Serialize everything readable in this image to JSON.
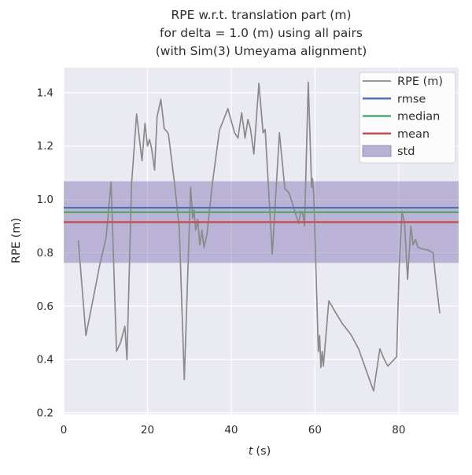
{
  "figure": {
    "background": "#ffffff",
    "plot_background": "#eaeaf2",
    "grid_color": "#ffffff",
    "text_color": "#2e2e2e"
  },
  "chart_data": {
    "type": "line",
    "title_lines": [
      "RPE w.r.t. translation part (m)",
      "for delta = 1.0 (m) using all pairs",
      "(with Sim(3) Umeyama alignment)"
    ],
    "xlabel_var": "t",
    "xlabel_unit": "(s)",
    "ylabel": "RPE (m)",
    "xlim": [
      0,
      94.3
    ],
    "ylim": [
      0.194,
      1.494
    ],
    "xticks": [
      0,
      20,
      40,
      60,
      80
    ],
    "yticks": [
      0.2,
      0.4,
      0.6,
      0.8,
      1.0,
      1.2,
      1.4
    ],
    "grid": true,
    "legend_position": "upper right",
    "legend_labels": [
      "RPE (m)",
      "rmse",
      "median",
      "mean",
      "std"
    ],
    "series": [
      {
        "name": "RPE (m)",
        "type": "line",
        "color": "#8a8a8a",
        "points": [
          [
            3.5,
            0.845
          ],
          [
            5.3,
            0.49
          ],
          [
            7.3,
            0.65
          ],
          [
            8.6,
            0.755
          ],
          [
            10.1,
            0.855
          ],
          [
            11.3,
            1.065
          ],
          [
            12.6,
            0.43
          ],
          [
            13.6,
            0.465
          ],
          [
            14.6,
            0.525
          ],
          [
            15.1,
            0.4
          ],
          [
            16.2,
            1.055
          ],
          [
            17.4,
            1.32
          ],
          [
            18.7,
            1.145
          ],
          [
            19.4,
            1.285
          ],
          [
            20.0,
            1.2
          ],
          [
            20.5,
            1.225
          ],
          [
            21.0,
            1.19
          ],
          [
            21.7,
            1.11
          ],
          [
            22.3,
            1.31
          ],
          [
            23.2,
            1.375
          ],
          [
            24.0,
            1.265
          ],
          [
            24.6,
            1.255
          ],
          [
            25.0,
            1.245
          ],
          [
            26.5,
            1.055
          ],
          [
            27.6,
            0.89
          ],
          [
            28.8,
            0.325
          ],
          [
            30.3,
            1.045
          ],
          [
            30.8,
            0.93
          ],
          [
            31.1,
            0.96
          ],
          [
            31.5,
            0.885
          ],
          [
            32.0,
            0.925
          ],
          [
            32.5,
            0.83
          ],
          [
            33.0,
            0.885
          ],
          [
            33.5,
            0.82
          ],
          [
            34.2,
            0.87
          ],
          [
            35.5,
            1.06
          ],
          [
            37.2,
            1.26
          ],
          [
            39.2,
            1.34
          ],
          [
            39.9,
            1.3
          ],
          [
            40.8,
            1.25
          ],
          [
            41.6,
            1.23
          ],
          [
            42.5,
            1.325
          ],
          [
            43.3,
            1.23
          ],
          [
            44.0,
            1.3
          ],
          [
            44.6,
            1.265
          ],
          [
            45.4,
            1.17
          ],
          [
            46.6,
            1.435
          ],
          [
            47.6,
            1.25
          ],
          [
            48.1,
            1.262
          ],
          [
            49.8,
            0.795
          ],
          [
            51.5,
            1.25
          ],
          [
            52.8,
            1.04
          ],
          [
            53.8,
            1.025
          ],
          [
            55.1,
            0.96
          ],
          [
            56.1,
            0.91
          ],
          [
            56.6,
            0.955
          ],
          [
            57.1,
            0.945
          ],
          [
            57.5,
            0.9
          ],
          [
            58.4,
            1.44
          ],
          [
            59.2,
            1.045
          ],
          [
            59.4,
            1.078
          ],
          [
            59.7,
            1.02
          ],
          [
            60.8,
            0.43
          ],
          [
            61.1,
            0.49
          ],
          [
            61.4,
            0.37
          ],
          [
            61.7,
            0.43
          ],
          [
            62.0,
            0.375
          ],
          [
            63.3,
            0.62
          ],
          [
            64.6,
            0.585
          ],
          [
            66.5,
            0.535
          ],
          [
            68.5,
            0.495
          ],
          [
            70.4,
            0.44
          ],
          [
            72.2,
            0.36
          ],
          [
            74.0,
            0.282
          ],
          [
            75.5,
            0.44
          ],
          [
            76.4,
            0.405
          ],
          [
            77.4,
            0.375
          ],
          [
            79.5,
            0.41
          ],
          [
            80.1,
            0.745
          ],
          [
            80.8,
            0.955
          ],
          [
            81.4,
            0.91
          ],
          [
            82.1,
            0.7
          ],
          [
            82.9,
            0.9
          ],
          [
            83.4,
            0.83
          ],
          [
            84.0,
            0.85
          ],
          [
            84.6,
            0.82
          ],
          [
            85.5,
            0.815
          ],
          [
            87.0,
            0.81
          ],
          [
            88.2,
            0.8
          ],
          [
            88.9,
            0.69
          ],
          [
            89.8,
            0.575
          ]
        ]
      },
      {
        "name": "rmse",
        "type": "hline",
        "color": "#4c72b0",
        "value": 0.969
      },
      {
        "name": "median",
        "type": "hline",
        "color": "#55a868",
        "value": 0.952
      },
      {
        "name": "mean",
        "type": "hline",
        "color": "#c44e52",
        "value": 0.915
      },
      {
        "name": "std",
        "type": "hband",
        "color": "#8172b2",
        "range": [
          0.762,
          1.068
        ]
      }
    ]
  }
}
